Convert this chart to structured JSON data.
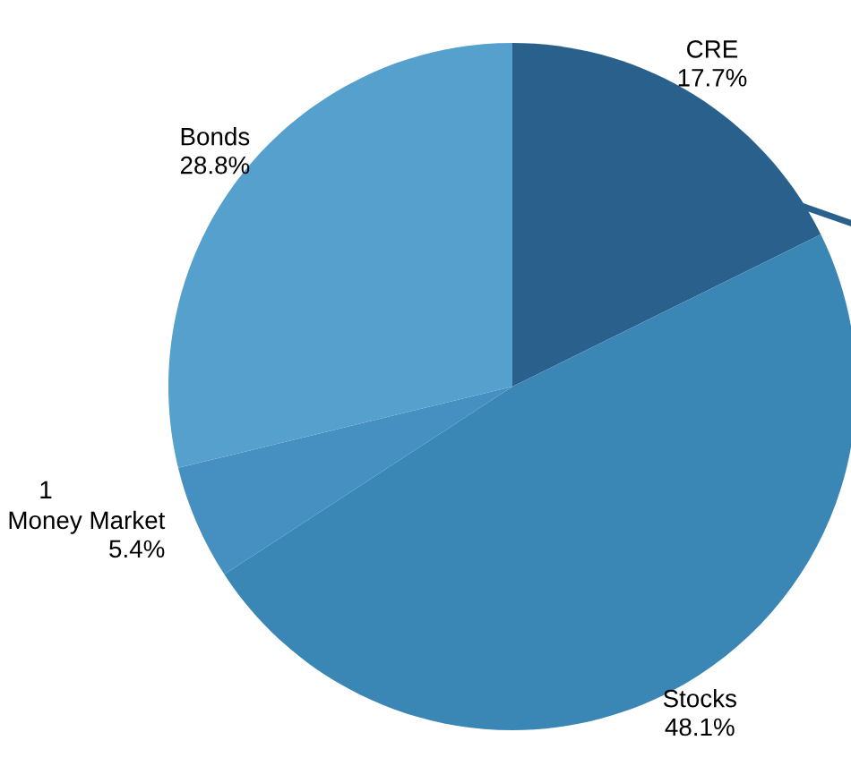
{
  "chart_data": {
    "type": "pie",
    "categories": [
      "CRE",
      "Stocks",
      "Money Market",
      "Bonds"
    ],
    "values": [
      17.7,
      48.1,
      5.4,
      28.8
    ],
    "colors": [
      "#2a618c",
      "#3a86b5",
      "#4590c0",
      "#56a0cd"
    ],
    "value_labels": [
      "17.7%",
      "48.1%",
      "5.4%",
      "28.8%"
    ],
    "annotations": [
      "1"
    ]
  }
}
